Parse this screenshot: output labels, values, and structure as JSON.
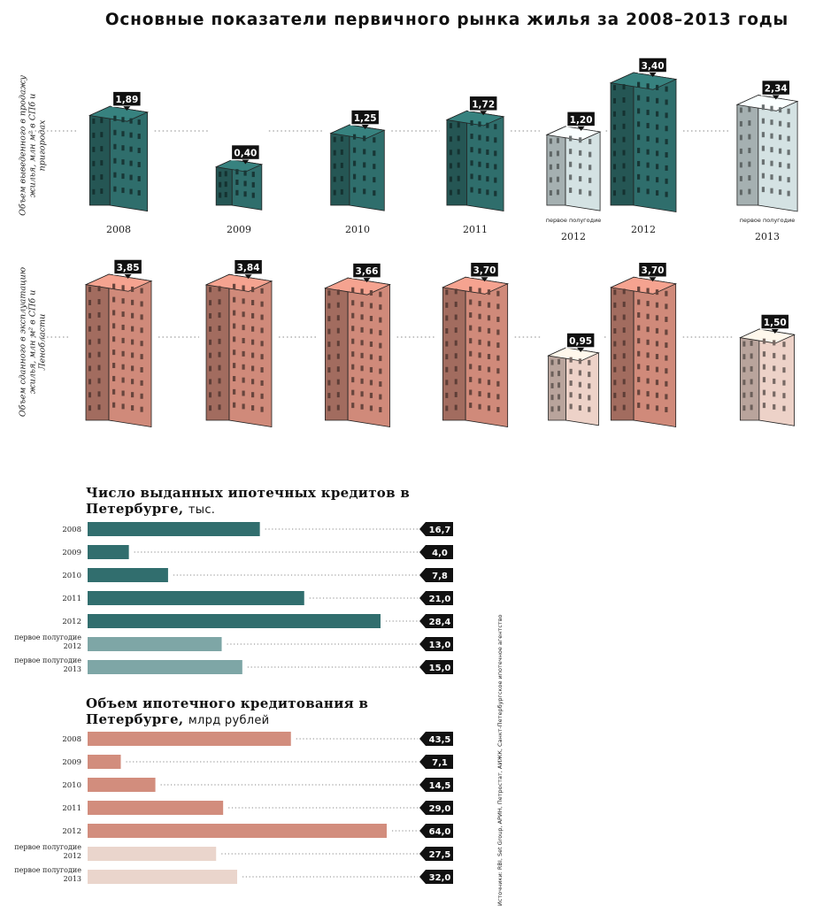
{
  "title": "Основные показатели первичного рынка жилья за 2008–2013 годы",
  "colors": {
    "teal_dark": "#2f6e6c",
    "teal_light": "#d4e2e3",
    "brick": "#d08a7a",
    "brick_light": "#edd2c8",
    "bar_teal": "#316e6e",
    "bar_teal_light": "#7ea6a6",
    "bar_brick": "#d28d7d",
    "bar_brick_light": "#ead5cc",
    "label_bg": "#111111"
  },
  "buildings_top": {
    "ylabel": "Объем выведенного в продажу жилья, млн м² в СПб и пригородах",
    "periods": [
      "2008",
      "2009",
      "2010",
      "2011",
      "первое полугодие 2012",
      "2012",
      "первое полугодие 2013"
    ],
    "values": [
      "1,89",
      "0,40",
      "1,25",
      "1,72",
      "1,20",
      "3,40",
      "2,34"
    ]
  },
  "buildings_bottom": {
    "ylabel": "Объем сданного в эксплуатацию жилья, млн м² в СПб и Ленобласти",
    "values": [
      "3,85",
      "3,84",
      "3,66",
      "3,70",
      "0,95",
      "3,70",
      "1,50"
    ]
  },
  "year_labels": [
    {
      "small": "",
      "year": "2008"
    },
    {
      "small": "",
      "year": "2009"
    },
    {
      "small": "",
      "year": "2010"
    },
    {
      "small": "",
      "year": "2011"
    },
    {
      "small": "первое полугодие",
      "year": "2012"
    },
    {
      "small": "",
      "year": "2012"
    },
    {
      "small": "первое полугодие",
      "year": "2013"
    }
  ],
  "loans": {
    "title_bold": "Число выданных ипотечных кредитов в Петербурге,",
    "title_unit": "тыс."
  },
  "volume": {
    "title_bold": "Объем ипотечного кредитования в Петербурге,",
    "title_unit": "млрд рублей"
  },
  "source": "Источники: RBI, Set Group, АРИН, Петростат, АИЖК, Санкт-Петербургское ипотечное агентство",
  "chart_data": [
    {
      "type": "bar",
      "title": "Основные показатели первичного рынка жилья за 2008–2013 годы",
      "ylabel": "Объем выведенного в продажу жилья, млн м² в СПб и пригородах",
      "categories": [
        "2008",
        "2009",
        "2010",
        "2011",
        "первое полугодие 2012",
        "2012",
        "первое полугодие 2013"
      ],
      "values": [
        1.89,
        0.4,
        1.25,
        1.72,
        1.2,
        3.4,
        2.34
      ]
    },
    {
      "type": "bar",
      "ylabel": "Объем сданного в эксплуатацию жилья, млн м² в СПб и Ленобласти",
      "categories": [
        "2008",
        "2009",
        "2010",
        "2011",
        "первое полугодие 2012",
        "2012",
        "первое полугодие 2013"
      ],
      "values": [
        3.85,
        3.84,
        3.66,
        3.7,
        0.95,
        3.7,
        1.5
      ]
    },
    {
      "type": "bar",
      "orientation": "horizontal",
      "title": "Число выданных ипотечных кредитов в Петербурге, тыс.",
      "categories": [
        "2008",
        "2009",
        "2010",
        "2011",
        "2012",
        "первое полугодие 2012",
        "первое полугодие 2013"
      ],
      "values": [
        16.7,
        4.0,
        7.8,
        21.0,
        28.4,
        13.0,
        15.0
      ],
      "labels": [
        "16,7",
        "4,0",
        "7,8",
        "21,0",
        "28,4",
        "13,0",
        "15,0"
      ]
    },
    {
      "type": "bar",
      "orientation": "horizontal",
      "title": "Объем ипотечного кредитования в Петербурге, млрд рублей",
      "categories": [
        "2008",
        "2009",
        "2010",
        "2011",
        "2012",
        "первое полугодие 2012",
        "первое полугодие 2013"
      ],
      "values": [
        43.5,
        7.1,
        14.5,
        29.0,
        64.0,
        27.5,
        32.0
      ],
      "labels": [
        "43,5",
        "7,1",
        "14,5",
        "29,0",
        "64,0",
        "27,5",
        "32,0"
      ]
    }
  ]
}
